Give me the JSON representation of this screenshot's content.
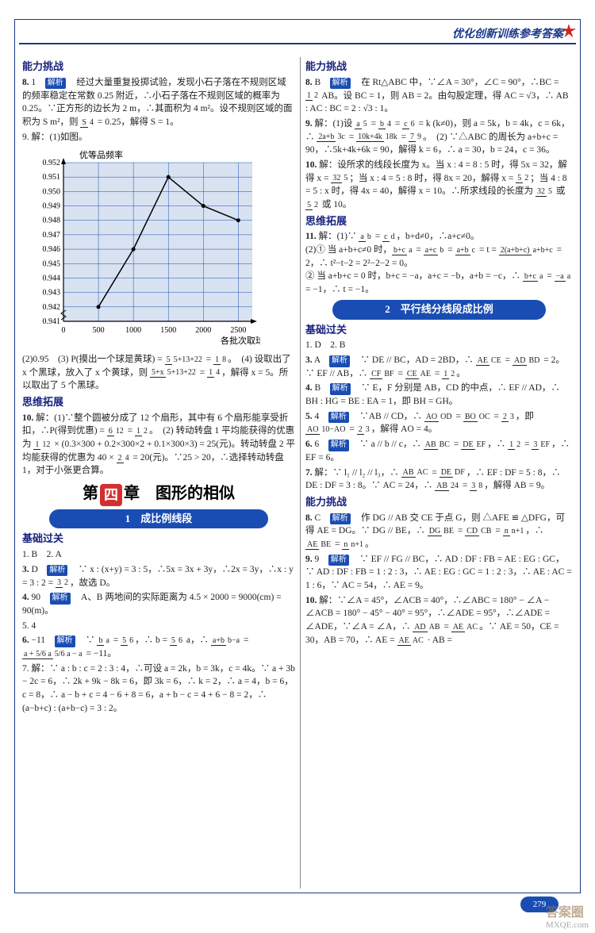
{
  "header": {
    "title": "优化创新训练参考答案"
  },
  "page_number": "279",
  "watermark": {
    "top": "答案圈",
    "bottom": "MXQE.com"
  },
  "left": {
    "sec1_title": "能力挑战",
    "q8": "8. 1　解析　经过大量重复投掷试验，发现小石子落在不规则区域的频率稳定在常数 0.25 附近，∴小石子落在不规则区域的概率为 0.25。∵正方形的边长为 2 m，∴其面积为 4 m²。设不规则区域的面积为 S m²，则 S/4 = 0.25，解得 S = 1。",
    "q9a": "9. 解：(1)如图。",
    "chart": {
      "y_label": "优等品频率",
      "x_label": "各批次取球数",
      "y_ticks": [
        "0.952",
        "0.951",
        "0.950",
        "0.949",
        "0.948",
        "0.947",
        "0.946",
        "0.945",
        "0.944",
        "0.943",
        "0.942",
        "0.941"
      ],
      "x_ticks": [
        "0",
        "500",
        "1000",
        "1500",
        "2000",
        "2500"
      ],
      "values": [
        0.942,
        0.946,
        0.951,
        0.949,
        0.948
      ],
      "ylim": [
        0.941,
        0.952
      ],
      "xlim": [
        0,
        2700
      ],
      "line_color": "#000000",
      "grid_color": "#1a4db3",
      "axis_color": "#000000",
      "background": "#d8e2f0",
      "font_size": 10
    },
    "q9b": "(2)0.95　(3) P(摸出一个球是黄球) = 5/(5+13+22) = 1/8。　(4) 设取出了 x 个黑球，放入了 x 个黄球，则 (5+x)/(5+13+22) = 1/4，解得 x = 5。所以取出了 5 个黑球。",
    "sec2_title": "思维拓展",
    "q10": "10. 解：(1)∵整个圆被分成了 12 个扇形，其中有 6 个扇形能享受折扣，∴P(得到优惠) = 6/12 = 1/2。　(2) 转动转盘 1 平均能获得的优惠为 1/12 × (0.3×300 + 0.2×300×2 + 0.1×300×3) = 25(元)。转动转盘 2 平均能获得的优惠为 40 × 2/4 = 20(元)。∵25 > 20，∴选择转动转盘 1，对于小张更合算。",
    "chapter": {
      "pre": "第",
      "num": "四",
      "post": "章　图形的相似"
    },
    "pill1": "1　成比例线段",
    "sec3_title": "基础过关",
    "a12": "1. B　2. A",
    "a3": "3. D　解析　∵ x : (x+y) = 3 : 5，∴5x = 3x + 3y，∴2x = 3y，∴x : y = 3 : 2 = 3/2，故选 D。",
    "a4": "4. 90　解析　A、B 两地间的实际距离为 4.5 × 2000 = 9000(cm) = 90(m)。",
    "a5": "5. 4",
    "a6": "6. −11　解析　∵ b/a = 5/6，∴ b = 5/6 a，∴ (a+b)/(b−a) = (a + 5/6 a)/(5/6 a − a) = −11。",
    "a7": "7. 解：∵ a : b : c = 2 : 3 : 4，∴可设 a = 2k，b = 3k，c = 4k。∵ a + 3b − 2c = 6，∴ 2k + 9k − 8k = 6，即 3k = 6，∴ k = 2，∴ a = 4，b = 6，c = 8，∴ a − b + c = 4 − 6 + 8 = 6，a + b − c = 4 + 6 − 8 = 2，∴ (a−b+c) : (a+b−c) = 3 : 2。"
  },
  "right": {
    "sec1_title": "能力挑战",
    "r8": "8. B　解析　在 Rt△ABC 中，∵∠A = 30°，∠C = 90°，∴BC = 1/2 AB。设 BC = 1，则 AB = 2。由勾股定理，得 AC = √3，∴ AB : AC : BC = 2 : √3 : 1。",
    "r9": "9. 解：(1)设 a/5 = b/4 = c/6 = k (k≠0)，则 a = 5k，b = 4k，c = 6k，∴ (2a+b)/3c = (10k+4k)/18k = 7/9。　(2) ∵△ABC 的周长为 a + b + c = 90，∴ 5k + 4k + 6k = 90，解得 k = 6，∴ a = 30，b = 24，c = 36。",
    "r10": "10. 解：设所求的线段长度为 x。当 x : 4 = 8 : 5 时，得 5x = 32，解得 x = 32/5；当 x : 4 = 5 : 8 时，得 8x = 20，解得 x = 5/2；当 4 : 8 = 5 : x 时，得 4x = 40，解得 x = 10。∴所求线段的长度为 32/5 或 5/2 或 10。",
    "sec2_title": "思维拓展",
    "r11": "11. 解：(1)∵ a/b = c/d，b + d ≠ 0，∴ a + c ≠ 0。\n(2)① 当 a + b + c ≠ 0 时，(b+c)/a = (a+c)/b = (a+b)/c = t = 2(a+b+c)/(a+b+c) = 2，∴ t² − t − 2 = 2² − 2 − 2 = 0。\n② 当 a + b + c = 0 时，b + c = −a，a + c = −b，a + b = −c，∴ (b+c)/a = −a/a = −1，∴ t = −1。",
    "pill2": "2　平行线分线段成比例",
    "sec3_title": "基础过关",
    "b12": "1. D　2. B",
    "b3": "3. A　解析　∵ DE // BC，AD = 2BD，∴ AE/CE = AD/BD = 2。∵ EF // AB，∴ CF/BF = CE/AE = 1/2。",
    "b4": "4. B　解析　∵ E，F 分别是 AB，CD 的中点，∴ EF // AD，∴ BH : HG = BE : EA = 1，即 BH = GH。",
    "b5": "5. 4　解析　∵AB // CD，∴ AO/OD = BO/OC = 2/3，即 AO/(10−AO) = 2/3，解得 AO = 4。",
    "b6": "6. 6　解析　∵ a // b // c，∴ AB/BC = DE/EF，∴ 1/2 = 3/EF，∴ EF = 6。",
    "b7": "7. 解：∵ l₁ // l₂ // l₃，∴ AB/AC = DE/DF，∴ EF : DF = 5 : 8，∴ DE : DF = 3 : 8。∵ AC = 24，∴ AB/24 = 3/8，解得 AB = 9。",
    "sec4_title": "能力挑战",
    "c8": "8. C　解析　作 DG // AB 交 CE 于点 G，则 △AFE ≌ △DFG，可得 AE = DG。∵ DG // BE，∴ DG/BE = CD/CB = n/(n+1)，∴ AE/BE = n/(n+1)。",
    "c9": "9. 9　解析　∵ EF // FG // BC，∴ AD : DF : FB = AE : EG : GC，∵ AD : DF : FB = 1 : 2 : 3，∴ AE : EG : GC = 1 : 2 : 3，∴ AE : AC = 1 : 6，∵ AC = 54，∴ AE = 9。",
    "c10": "10. 解：∵∠A = 45°，∠ACB = 40°，∴∠ABC = 180° − ∠A − ∠ACB = 180° − 45° − 40° = 95°，∴∠ADE = 95°，∴∠ADE = ∠ADE，∵∠A = ∠A，∴ AD/AB = AE/AC。∵ AE = 50，CE = 30，AB = 70，∴ AE = AE/AC · AB ="
  }
}
